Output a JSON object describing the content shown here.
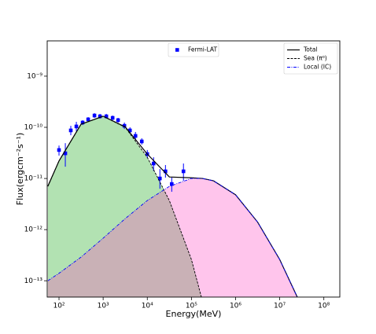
{
  "chart_data": {
    "type": "line",
    "xlabel": "Energy(MeV)",
    "ylabel": "Flux(ergcm⁻²s⁻¹)",
    "xlog": true,
    "ylog": true,
    "xlim": [
      54,
      230000000
    ],
    "ylim": [
      4.8e-14,
      4.9e-09
    ],
    "xticks": [
      {
        "value": 100,
        "label": "10²"
      },
      {
        "value": 1000,
        "label": "10³"
      },
      {
        "value": 10000,
        "label": "10⁴"
      },
      {
        "value": 100000,
        "label": "10⁵"
      },
      {
        "value": 1000000,
        "label": "10⁶"
      },
      {
        "value": 10000000,
        "label": "10⁷"
      },
      {
        "value": 100000000,
        "label": "10⁸"
      }
    ],
    "yticks": [
      {
        "value": 1e-13,
        "label": "10⁻¹³"
      },
      {
        "value": 1e-12,
        "label": "10⁻¹²"
      },
      {
        "value": 1e-11,
        "label": "10⁻¹¹"
      },
      {
        "value": 1e-10,
        "label": "10⁻¹⁰"
      },
      {
        "value": 1e-09,
        "label": "10⁻⁹"
      }
    ],
    "series": [
      {
        "name": "Fermi-LAT",
        "kind": "scatter",
        "legend": "upper center",
        "color": "#0000ff",
        "x": [
          100,
          139,
          185,
          247,
          343,
          458,
          636,
          848,
          1180,
          1640,
          2180,
          3030,
          4050,
          5400,
          7500,
          10000,
          13900,
          19300,
          25800,
          35800,
          66000
        ],
        "values": [
          3.6e-11,
          3.1e-11,
          8.7e-11,
          1.04e-10,
          1.24e-10,
          1.43e-10,
          1.7e-10,
          1.64e-10,
          1.64e-10,
          1.53e-10,
          1.38e-10,
          1.07e-10,
          8.7e-11,
          6.8e-11,
          5.3e-11,
          3e-11,
          1.96e-11,
          1e-11,
          1.38e-11,
          7.8e-12,
          1.38e-11
        ],
        "lower": [
          2.8e-11,
          1.7e-11,
          7e-11,
          8.4e-11,
          1.11e-10,
          1.28e-10,
          1.53e-10,
          1.48e-10,
          1.48e-10,
          1.38e-10,
          1.24e-10,
          9.3e-11,
          7.5e-11,
          5.7e-11,
          4.6e-11,
          2.5e-11,
          1.4e-11,
          6.3e-12,
          1.04e-11,
          5.5e-12,
          9e-12
        ],
        "upper": [
          4.4e-11,
          4.9e-11,
          1.07e-10,
          1.28e-10,
          1.38e-10,
          1.58e-10,
          1.89e-10,
          1.83e-10,
          1.83e-10,
          1.7e-10,
          1.53e-10,
          1.24e-10,
          1e-10,
          8.1e-11,
          6.1e-11,
          3.6e-11,
          2.6e-11,
          1.53e-11,
          1.83e-11,
          1.04e-11,
          1.96e-11
        ]
      },
      {
        "name": "Total",
        "kind": "line",
        "legend": "upper right",
        "color": "#000000",
        "dash": "solid",
        "x": [
          56,
          100,
          316,
          1000,
          3162,
          10000,
          31623,
          100000,
          177828,
          316228,
          1000000,
          3162278,
          10000000,
          25000000
        ],
        "values": [
          7.1e-12,
          2.2e-11,
          1.15e-10,
          1.65e-10,
          1.02e-10,
          3e-11,
          1.07e-11,
          1.03e-11,
          1e-11,
          9e-12,
          4.8e-12,
          1.4e-12,
          2.6e-13,
          4.8e-14
        ]
      },
      {
        "name": "Sea (π⁰)",
        "kind": "line",
        "legend": "upper right",
        "color": "#000000",
        "dash": "dashed",
        "fill": "#00a000",
        "x": [
          56,
          100,
          316,
          1000,
          3162,
          10000,
          31623,
          100000,
          177828,
          316228,
          1000000,
          3162278,
          10000000,
          25000000
        ],
        "values": [
          7e-12,
          2.2e-11,
          1.15e-10,
          1.64e-10,
          1e-10,
          2.6e-11,
          3.7e-12,
          2.6e-13,
          4e-14,
          null,
          null,
          null,
          null,
          null
        ]
      },
      {
        "name": "Local (IC)",
        "kind": "line",
        "legend": "upper right",
        "color": "#0000ff",
        "dash": "dashdot",
        "fill": "#ff40c0",
        "x": [
          56,
          100,
          316,
          1000,
          3162,
          10000,
          31623,
          100000,
          177828,
          316228,
          1000000,
          3162278,
          10000000,
          25000000
        ],
        "values": [
          1e-13,
          1.4e-13,
          2.9e-13,
          6.8e-13,
          1.64e-12,
          3.7e-12,
          7e-12,
          1e-11,
          1e-11,
          9e-12,
          4.8e-12,
          1.4e-12,
          2.6e-13,
          4.8e-14
        ]
      }
    ]
  }
}
